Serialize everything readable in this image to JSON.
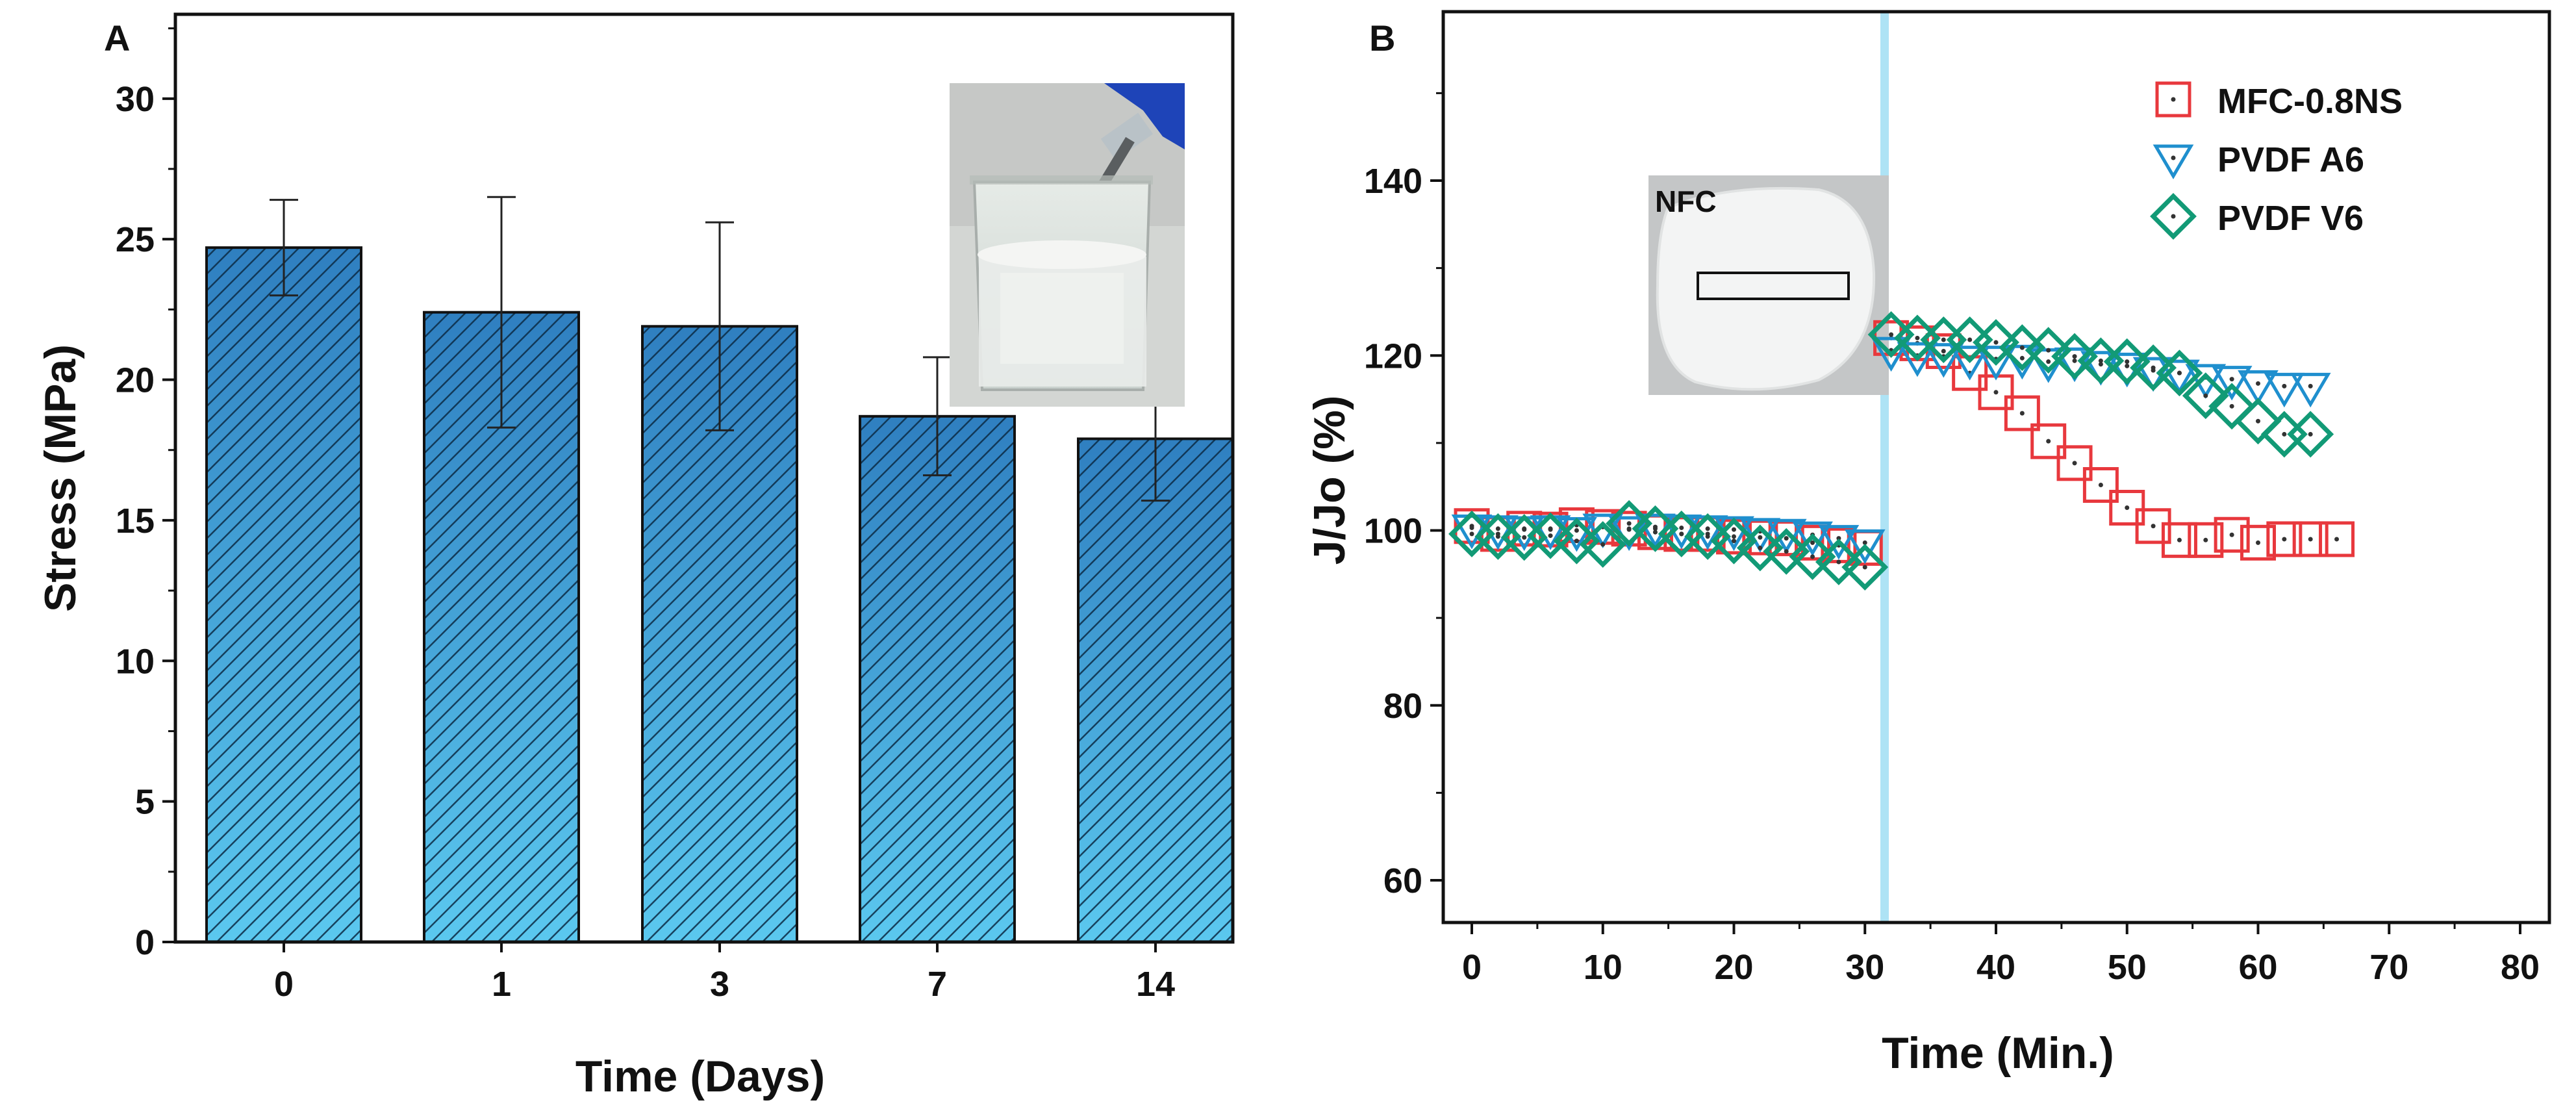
{
  "chart_data": [
    {
      "panel": "A",
      "type": "bar",
      "categories": [
        "0",
        "1",
        "3",
        "7",
        "14"
      ],
      "values": [
        24.7,
        22.4,
        21.9,
        18.7,
        17.9
      ],
      "errors": [
        1.7,
        4.1,
        3.7,
        2.1,
        2.2
      ],
      "xlabel": "Time (Days)",
      "ylabel": "Stress (MPa)",
      "ylim": [
        0,
        33
      ],
      "yticks": [
        0,
        5,
        10,
        15,
        20,
        25,
        30
      ],
      "bar_color": "#2f7fc0",
      "bar_color_bottom": "#5bc8ef",
      "inset": "photo of membrane in beaker of water"
    },
    {
      "panel": "B",
      "type": "scatter",
      "xlabel": "Time (Min.)",
      "ylabel": "J/Jo (%)",
      "xlim": [
        -2,
        80
      ],
      "ylim": [
        55,
        155
      ],
      "xticks": [
        0,
        10,
        20,
        30,
        40,
        50,
        60,
        70,
        80
      ],
      "yticks": [
        60,
        80,
        100,
        120,
        140
      ],
      "vline_x": 31.5,
      "vline_color": "#aee3f5",
      "inset_label": "NFC",
      "series": [
        {
          "name": "MFC-0.8NS",
          "marker": "square",
          "color": "#e8383d",
          "x": [
            0,
            2,
            4,
            6,
            8,
            10,
            12,
            14,
            16,
            18,
            20,
            22,
            24,
            26,
            28,
            30,
            32,
            34,
            36,
            38,
            40,
            42,
            44,
            46,
            48,
            50,
            52,
            54,
            56,
            58,
            60,
            62,
            64,
            66
          ],
          "y": [
            100.5,
            99.6,
            100.2,
            100.1,
            100.6,
            100.4,
            100.2,
            99.8,
            99.6,
            99.6,
            99.3,
            99.2,
            99.1,
            98.6,
            98.3,
            98.0,
            122.0,
            121.4,
            120.5,
            118.0,
            115.8,
            113.4,
            110.2,
            107.7,
            105.2,
            102.6,
            100.5,
            98.9,
            98.9,
            99.5,
            98.6,
            99.0,
            99.0,
            99.0
          ]
        },
        {
          "name": "PVDF A6",
          "marker": "triangle-down",
          "color": "#1f8fce",
          "x": [
            0,
            2,
            4,
            6,
            8,
            10,
            12,
            14,
            16,
            18,
            20,
            22,
            24,
            26,
            28,
            30,
            32,
            34,
            36,
            38,
            40,
            42,
            44,
            46,
            48,
            50,
            52,
            54,
            56,
            58,
            60,
            62,
            64
          ],
          "y": [
            100.3,
            100.2,
            100.1,
            100.2,
            100.0,
            100.4,
            100.1,
            100.4,
            100.3,
            100.2,
            100.1,
            99.9,
            99.8,
            99.5,
            99.1,
            98.6,
            120.6,
            120.0,
            119.9,
            119.6,
            119.6,
            119.7,
            119.3,
            119.4,
            119.0,
            118.8,
            118.3,
            118.0,
            117.5,
            117.3,
            116.8,
            116.5,
            116.5
          ]
        },
        {
          "name": "PVDF V6",
          "marker": "diamond",
          "color": "#129a76",
          "x": [
            0,
            2,
            4,
            6,
            8,
            10,
            12,
            14,
            16,
            18,
            20,
            22,
            24,
            26,
            28,
            30,
            32,
            34,
            36,
            38,
            40,
            42,
            44,
            46,
            48,
            50,
            52,
            54,
            56,
            58,
            60,
            62,
            64
          ],
          "y": [
            99.6,
            99.3,
            99.2,
            99.4,
            98.8,
            98.4,
            100.8,
            100.2,
            99.6,
            99.3,
            98.8,
            98.0,
            97.6,
            97.0,
            96.4,
            95.8,
            122.4,
            122.0,
            121.8,
            121.8,
            121.5,
            120.9,
            120.6,
            119.9,
            119.4,
            119.3,
            118.6,
            118.0,
            115.4,
            114.2,
            112.5,
            111.0,
            111.0
          ]
        }
      ]
    }
  ],
  "labels": {
    "panel_a": "A",
    "panel_b": "B"
  }
}
